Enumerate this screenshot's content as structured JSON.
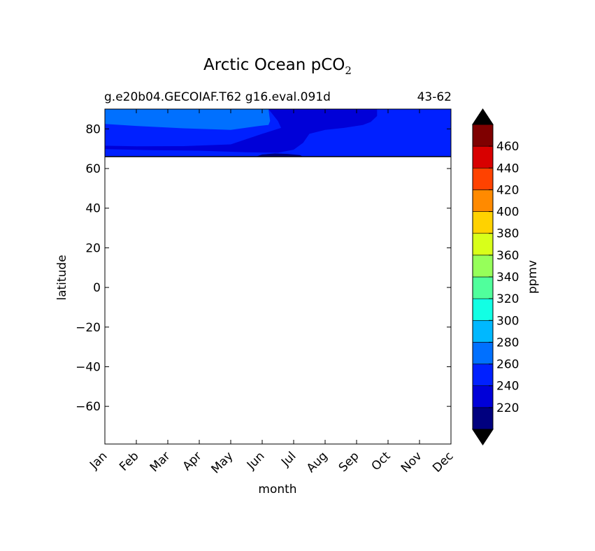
{
  "chart_data": {
    "type": "heatmap",
    "title": "Arctic Ocean pCO",
    "title_subscript": "2",
    "subtitle_left": "g.e20b04.GECOIAF.T62 g16.eval.091d",
    "subtitle_right": "43-62",
    "xlabel": "month",
    "ylabel": "latitude",
    "x_categories": [
      "Jan",
      "Feb",
      "Mar",
      "Apr",
      "May",
      "Jun",
      "Jul",
      "Aug",
      "Sep",
      "Oct",
      "Nov",
      "Dec"
    ],
    "yticks": [
      80,
      60,
      40,
      20,
      0,
      -20,
      -40,
      -60
    ],
    "ytick_labels": [
      "80",
      "60",
      "40",
      "20",
      "0",
      "−20",
      "−40",
      "−60"
    ],
    "ylim": [
      -79,
      90
    ],
    "data_lat_range": [
      66,
      90
    ],
    "colorbar": {
      "label": "ppmv",
      "levels": [
        200,
        220,
        240,
        260,
        280,
        300,
        320,
        340,
        360,
        380,
        400,
        420,
        440,
        460,
        480
      ],
      "tick_labels": [
        "220",
        "240",
        "260",
        "280",
        "300",
        "320",
        "340",
        "360",
        "380",
        "400",
        "420",
        "440",
        "460"
      ],
      "colors": [
        "#00007f",
        "#0000d8",
        "#0020ff",
        "#0070ff",
        "#00b8ff",
        "#12ffe4",
        "#50ff9c",
        "#96ff5a",
        "#d8ff1a",
        "#ffd200",
        "#ff8a00",
        "#ff4200",
        "#d80000",
        "#7f0000"
      ],
      "under_color": "#000000",
      "over_color": "#000000"
    },
    "regions": [
      {
        "name": "band-240-260-base",
        "level": "240-260",
        "color": "#0020ff",
        "points": [
          [
            0,
            90
          ],
          [
            11,
            90
          ],
          [
            11,
            66
          ],
          [
            0,
            66
          ]
        ]
      },
      {
        "name": "band-260-280-upper",
        "level": "260-280",
        "color": "#0070ff",
        "points": [
          [
            0,
            90
          ],
          [
            5.2,
            90
          ],
          [
            5.25,
            84
          ],
          [
            5.2,
            82
          ],
          [
            4.9,
            81.5
          ],
          [
            4.0,
            79.5
          ],
          [
            2.5,
            80.3
          ],
          [
            1.0,
            81.5
          ],
          [
            0,
            82.5
          ]
        ]
      },
      {
        "name": "band-220-240-mid",
        "level": "220-240",
        "color": "#0000d8",
        "points": [
          [
            5.2,
            90
          ],
          [
            8.65,
            90
          ],
          [
            8.65,
            86.5
          ],
          [
            8.45,
            83.5
          ],
          [
            8.2,
            82
          ],
          [
            7.6,
            80.5
          ],
          [
            7.0,
            79.5
          ],
          [
            6.5,
            77.5
          ],
          [
            6.3,
            73
          ],
          [
            6.0,
            69.5
          ],
          [
            5.5,
            68
          ],
          [
            4.5,
            68.2
          ],
          [
            3.0,
            69
          ],
          [
            1.5,
            69.3
          ],
          [
            0,
            69.8
          ],
          [
            0,
            71.5
          ],
          [
            1.0,
            71.2
          ],
          [
            2.5,
            71.3
          ],
          [
            4.0,
            72.2
          ],
          [
            5.0,
            77.5
          ],
          [
            5.6,
            80.5
          ],
          [
            5.5,
            84
          ]
        ]
      },
      {
        "name": "band-200-220-core",
        "level": "200-220",
        "color": "#00007f",
        "points": [
          [
            4.8,
            66
          ],
          [
            6.3,
            66
          ],
          [
            6.2,
            66.8
          ],
          [
            5.8,
            67.4
          ],
          [
            5.4,
            67.6
          ],
          [
            5.0,
            67.1
          ]
        ]
      }
    ]
  }
}
